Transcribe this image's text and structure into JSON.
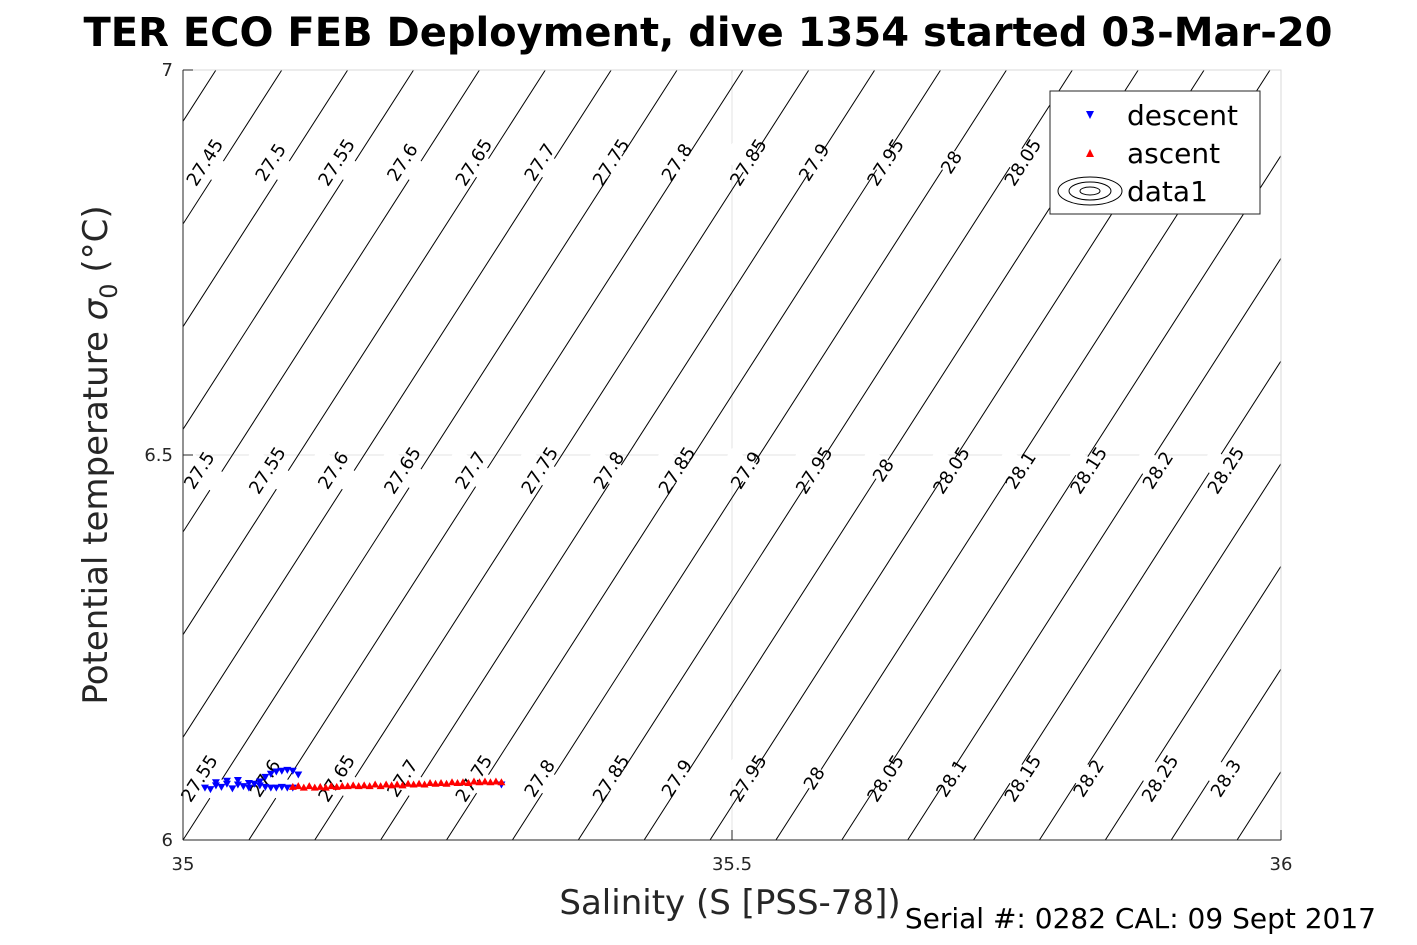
{
  "chart_data": {
    "type": "scatter",
    "title": "TER ECO FEB Deployment, dive 1354 started 03-Mar-20",
    "xlabel": "Salinity (S [PSS-78])",
    "ylabel_main": "Potential temperature ",
    "ylabel_sigma": "σ",
    "ylabel_sub": "0",
    "ylabel_unit": " (°C)",
    "xlim": [
      35,
      36
    ],
    "ylim": [
      6,
      7
    ],
    "xticks": [
      35,
      35.5,
      36
    ],
    "xtick_labels": [
      "35",
      "35.5",
      "36"
    ],
    "yticks": [
      6,
      6.5,
      7
    ],
    "ytick_labels": [
      "6",
      "6.5",
      "7"
    ],
    "grid": true,
    "legend_position": "top-right",
    "legend": [
      "descent",
      "ascent",
      "data1"
    ],
    "contour_levels": [
      "27.45",
      "27.5",
      "27.55",
      "27.6",
      "27.65",
      "27.7",
      "27.75",
      "27.8",
      "27.85",
      "27.9",
      "27.95",
      "28",
      "28.05",
      "28.1",
      "28.15",
      "28.2",
      "28.25",
      "28.3"
    ],
    "contour_labels": [
      {
        "text": "27.45",
        "x": 35.02,
        "t": 6.88
      },
      {
        "text": "27.5",
        "x": 35.08,
        "t": 6.88
      },
      {
        "text": "27.55",
        "x": 35.14,
        "t": 6.88
      },
      {
        "text": "27.6",
        "x": 35.2,
        "t": 6.88
      },
      {
        "text": "27.65",
        "x": 35.265,
        "t": 6.88
      },
      {
        "text": "27.7",
        "x": 35.325,
        "t": 6.88
      },
      {
        "text": "27.75",
        "x": 35.39,
        "t": 6.88
      },
      {
        "text": "27.8",
        "x": 35.45,
        "t": 6.88
      },
      {
        "text": "27.85",
        "x": 35.515,
        "t": 6.88
      },
      {
        "text": "27.9",
        "x": 35.575,
        "t": 6.88
      },
      {
        "text": "27.95",
        "x": 35.64,
        "t": 6.88
      },
      {
        "text": "28",
        "x": 35.7,
        "t": 6.88
      },
      {
        "text": "28.05",
        "x": 35.765,
        "t": 6.88
      },
      {
        "text": "27.5",
        "x": 35.015,
        "t": 6.48
      },
      {
        "text": "27.55",
        "x": 35.077,
        "t": 6.48
      },
      {
        "text": "27.6",
        "x": 35.137,
        "t": 6.48
      },
      {
        "text": "27.65",
        "x": 35.2,
        "t": 6.48
      },
      {
        "text": "27.7",
        "x": 35.262,
        "t": 6.48
      },
      {
        "text": "27.75",
        "x": 35.325,
        "t": 6.48
      },
      {
        "text": "27.8",
        "x": 35.388,
        "t": 6.48
      },
      {
        "text": "27.85",
        "x": 35.45,
        "t": 6.48
      },
      {
        "text": "27.9",
        "x": 35.513,
        "t": 6.48
      },
      {
        "text": "27.95",
        "x": 35.575,
        "t": 6.48
      },
      {
        "text": "28",
        "x": 35.638,
        "t": 6.48
      },
      {
        "text": "28.05",
        "x": 35.7,
        "t": 6.48
      },
      {
        "text": "28.1",
        "x": 35.763,
        "t": 6.48
      },
      {
        "text": "28.15",
        "x": 35.825,
        "t": 6.48
      },
      {
        "text": "28.2",
        "x": 35.888,
        "t": 6.48
      },
      {
        "text": "28.25",
        "x": 35.95,
        "t": 6.48
      },
      {
        "text": "27.55",
        "x": 35.015,
        "t": 6.08
      },
      {
        "text": "27.6",
        "x": 35.075,
        "t": 6.08
      },
      {
        "text": "27.65",
        "x": 35.14,
        "t": 6.08
      },
      {
        "text": "27.7",
        "x": 35.2,
        "t": 6.08
      },
      {
        "text": "27.75",
        "x": 35.265,
        "t": 6.08
      },
      {
        "text": "27.8",
        "x": 35.325,
        "t": 6.08
      },
      {
        "text": "27.85",
        "x": 35.39,
        "t": 6.08
      },
      {
        "text": "27.9",
        "x": 35.45,
        "t": 6.08
      },
      {
        "text": "27.95",
        "x": 35.515,
        "t": 6.08
      },
      {
        "text": "28",
        "x": 35.575,
        "t": 6.08
      },
      {
        "text": "28.05",
        "x": 35.64,
        "t": 6.08
      },
      {
        "text": "28.1",
        "x": 35.7,
        "t": 6.08
      },
      {
        "text": "28.15",
        "x": 35.765,
        "t": 6.08
      },
      {
        "text": "28.2",
        "x": 35.825,
        "t": 6.08
      },
      {
        "text": "28.25",
        "x": 35.89,
        "t": 6.08
      },
      {
        "text": "28.3",
        "x": 35.95,
        "t": 6.08
      }
    ],
    "series": [
      {
        "name": "descent",
        "marker": "triangle-down",
        "color": "#0000ff",
        "x": [
          35.02,
          35.025,
          35.03,
          35.035,
          35.04,
          35.045,
          35.05,
          35.055,
          35.06,
          35.065,
          35.07,
          35.075,
          35.08,
          35.085,
          35.09,
          35.095,
          35.1,
          35.03,
          35.04,
          35.05,
          35.06,
          35.07,
          35.075,
          35.08,
          35.085,
          35.09,
          35.095,
          35.1,
          35.105,
          35.29
        ],
        "y": [
          6.068,
          6.066,
          6.071,
          6.069,
          6.073,
          6.067,
          6.072,
          6.07,
          6.068,
          6.073,
          6.076,
          6.082,
          6.086,
          6.089,
          6.09,
          6.091,
          6.09,
          6.075,
          6.077,
          6.078,
          6.074,
          6.071,
          6.069,
          6.068,
          6.068,
          6.069,
          6.068,
          6.068,
          6.085,
          6.072
        ]
      },
      {
        "name": "ascent",
        "marker": "triangle-up",
        "color": "#ff0000",
        "x": [
          35.1,
          35.11,
          35.12,
          35.13,
          35.14,
          35.15,
          35.16,
          35.17,
          35.18,
          35.19,
          35.2,
          35.21,
          35.22,
          35.23,
          35.24,
          35.25,
          35.26,
          35.27,
          35.28,
          35.29,
          35.105,
          35.115,
          35.125,
          35.135,
          35.145,
          35.155,
          35.165,
          35.175,
          35.185,
          35.195,
          35.205,
          35.215,
          35.225,
          35.235,
          35.245,
          35.255,
          35.265,
          35.275,
          35.285
        ],
        "y": [
          6.069,
          6.068,
          6.068,
          6.068,
          6.069,
          6.07,
          6.07,
          6.07,
          6.07,
          6.071,
          6.071,
          6.072,
          6.072,
          6.073,
          6.073,
          6.074,
          6.074,
          6.075,
          6.075,
          6.075,
          6.07,
          6.07,
          6.069,
          6.07,
          6.07,
          6.071,
          6.071,
          6.072,
          6.072,
          6.072,
          6.073,
          6.073,
          6.074,
          6.074,
          6.075,
          6.075,
          6.076,
          6.076,
          6.076
        ]
      }
    ]
  },
  "footer": "Serial #: 0282  CAL: 09 Sept 2017"
}
